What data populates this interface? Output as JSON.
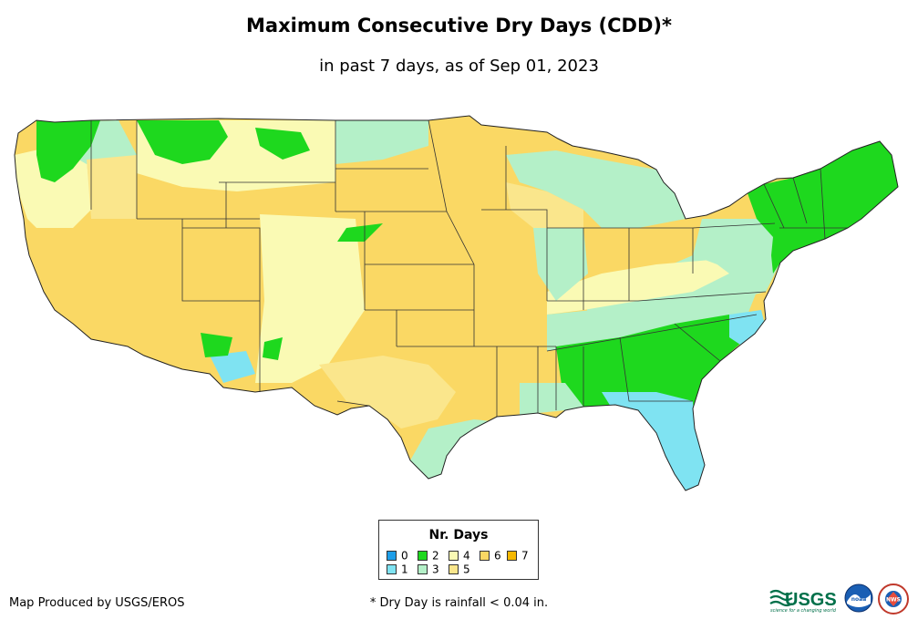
{
  "title": "Maximum Consecutive Dry Days (CDD)*",
  "subtitle": "in past 7 days, as of Sep 01, 2023",
  "legend": {
    "title": "Nr. Days",
    "items": [
      {
        "label": "0",
        "color": "#1e9ee8"
      },
      {
        "label": "1",
        "color": "#7fe3f2"
      },
      {
        "label": "2",
        "color": "#1ed81e"
      },
      {
        "label": "3",
        "color": "#b4f0c8"
      },
      {
        "label": "4",
        "color": "#fafab4"
      },
      {
        "label": "5",
        "color": "#fae68c"
      },
      {
        "label": "6",
        "color": "#fad864"
      },
      {
        "label": "7",
        "color": "#f5b800"
      }
    ]
  },
  "footer": {
    "credit": "Map Produced by USGS/EROS",
    "note": "* Dry Day is rainfall < 0.04 in."
  },
  "logos": {
    "usgs": "USGS",
    "usgs_tagline": "science for a changing world",
    "noaa": "noaa",
    "nws": "NWS"
  }
}
